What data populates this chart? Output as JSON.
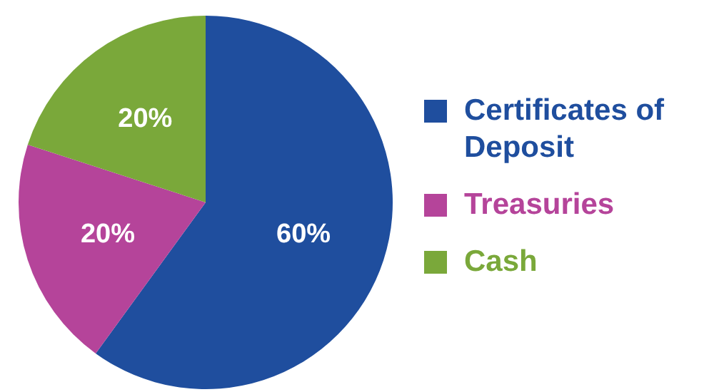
{
  "chart_data": {
    "type": "pie",
    "categories": [
      "Certificates of Deposit",
      "Treasuries",
      "Cash"
    ],
    "values": [
      60,
      20,
      20
    ],
    "value_labels": [
      "60%",
      "20%",
      "20%"
    ],
    "colors": [
      "#1f4e9e",
      "#b5449a",
      "#7aa83a"
    ],
    "legend": "right"
  }
}
